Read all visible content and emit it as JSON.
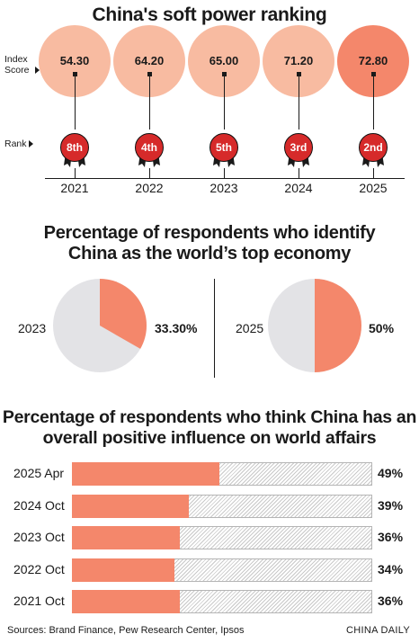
{
  "colors": {
    "accent": "#f4876b",
    "pale": "#f8bba1",
    "badge": "#d62a2a",
    "pie_gray": "#e3e3e6"
  },
  "chart_data": [
    {
      "type": "table",
      "title": "China's soft power ranking",
      "row_labels": [
        "Index Score",
        "Rank"
      ],
      "years": [
        "2021",
        "2022",
        "2023",
        "2024",
        "2025"
      ],
      "index_scores": [
        "54.30",
        "64.20",
        "65.00",
        "71.20",
        "72.80"
      ],
      "ranks": [
        "8th",
        "4th",
        "5th",
        "3rd",
        "2nd"
      ]
    },
    {
      "type": "pie",
      "title_line1": "Percentage of respondents who identify",
      "title_line2": "China as the world’s top economy",
      "pies": [
        {
          "year": "2023",
          "value": 33.3,
          "label": "33.30%"
        },
        {
          "year": "2025",
          "value": 50,
          "label": "50%"
        }
      ]
    },
    {
      "type": "bar",
      "orientation": "horizontal",
      "title_line1": "Percentage of respondents who think China has an",
      "title_line2": "overall positive influence on world affairs",
      "categories": [
        "2025 Apr",
        "2024 Oct",
        "2023 Oct",
        "2022 Oct",
        "2021 Oct"
      ],
      "values": [
        49,
        39,
        36,
        34,
        36
      ],
      "value_labels": [
        "49%",
        "39%",
        "36%",
        "34%",
        "36%"
      ],
      "xlim": [
        0,
        100
      ]
    }
  ],
  "footer": {
    "sources": "Sources: Brand Finance, Pew Research Center, Ipsos",
    "credit": "CHINA DAILY"
  }
}
